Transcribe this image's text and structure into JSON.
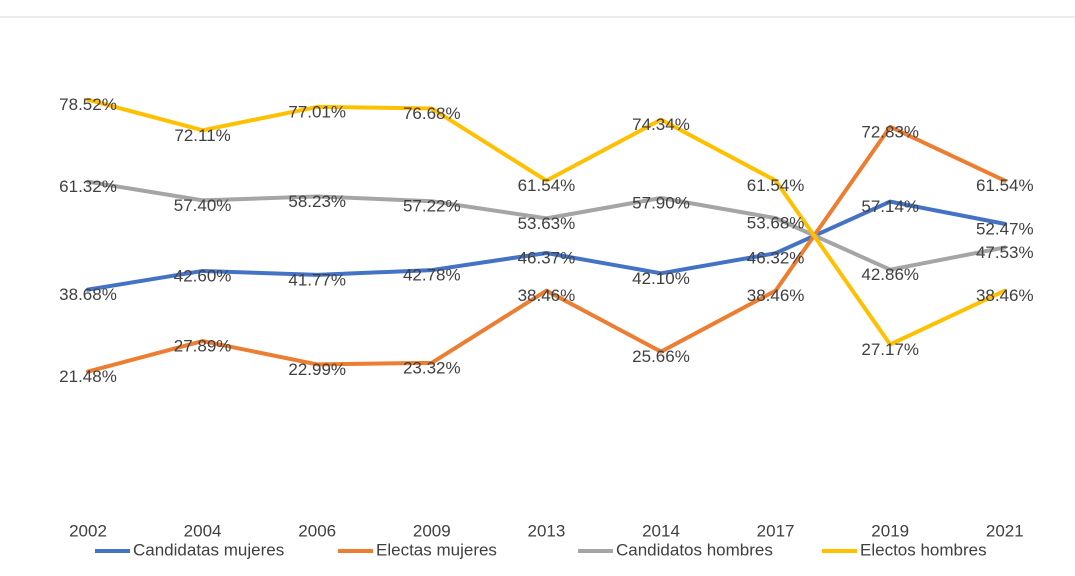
{
  "chart_data": {
    "type": "line",
    "categories": [
      "2002",
      "2004",
      "2006",
      "2009",
      "2013",
      "2014",
      "2017",
      "2019",
      "2021"
    ],
    "ylim": [
      0,
      90
    ],
    "series": [
      {
        "name": "Candidatas mujeres",
        "color": "#4472c4",
        "values": [
          38.68,
          42.6,
          41.77,
          42.78,
          46.37,
          42.1,
          46.32,
          57.14,
          52.47
        ],
        "value_labels": [
          "38.68%",
          "42.60%",
          "41.77%",
          "42.78%",
          "46.37%",
          "42.10%",
          "46.32%",
          "57.14%",
          "52.47%"
        ]
      },
      {
        "name": "Electas mujeres",
        "color": "#ed7d31",
        "values": [
          21.48,
          27.89,
          22.99,
          23.32,
          38.46,
          25.66,
          38.46,
          72.83,
          61.54
        ],
        "value_labels": [
          "21.48%",
          "27.89%",
          "22.99%",
          "23.32%",
          "38.46%",
          "25.66%",
          "38.46%",
          "72.83%",
          "61.54%"
        ]
      },
      {
        "name": "Candidatos hombres",
        "color": "#a5a5a5",
        "values": [
          61.32,
          57.4,
          58.23,
          57.22,
          53.63,
          57.9,
          53.68,
          42.86,
          47.53
        ],
        "value_labels": [
          "61.32%",
          "57.40%",
          "58.23%",
          "57.22%",
          "53.63%",
          "57.90%",
          "53.68%",
          "42.86%",
          "47.53%"
        ]
      },
      {
        "name": "Electos hombres",
        "color": "#ffc000",
        "values": [
          78.52,
          72.11,
          77.01,
          76.68,
          61.54,
          74.34,
          61.54,
          27.17,
          38.46
        ],
        "value_labels": [
          "78.52%",
          "72.11%",
          "77.01%",
          "76.68%",
          "61.54%",
          "74.34%",
          "61.54%",
          "27.17%",
          "38.46%"
        ]
      }
    ]
  }
}
